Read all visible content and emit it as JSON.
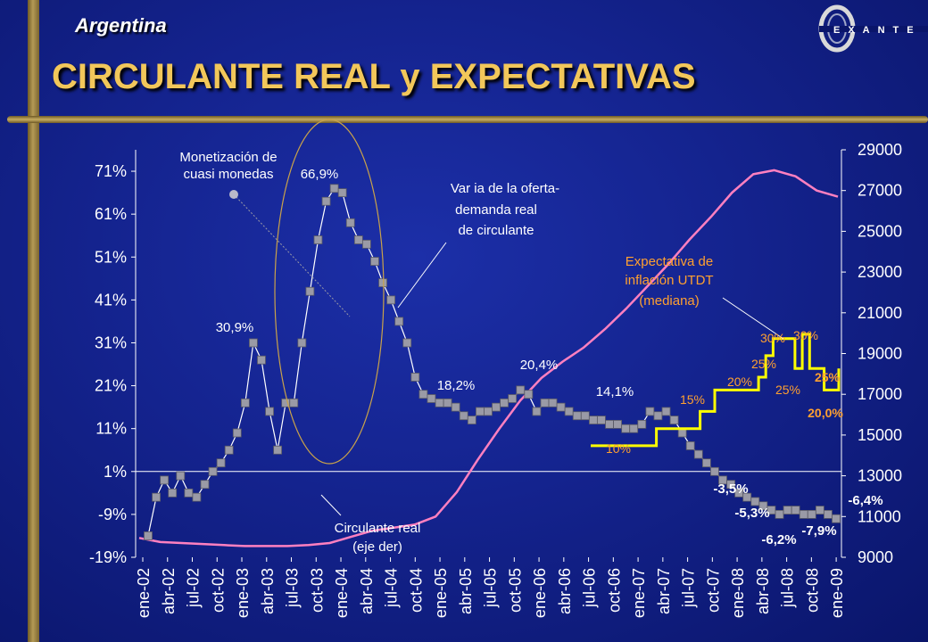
{
  "header": {
    "country": "Argentina",
    "title": "CIRCULANTE REAL y EXPECTATIVAS",
    "logo_text": "EXANTE"
  },
  "colors": {
    "background": "#14238e",
    "title": "#f2c75a",
    "bars": "#b49a55",
    "pct_series": "#9a9aa6",
    "real_series": "#ff80c0",
    "expect_series": "#ffff00",
    "expect_label": "#ffa030"
  },
  "chart_data": {
    "type": "line",
    "x_tick_labels": [
      "ene-02",
      "abr-02",
      "jul-02",
      "oct-02",
      "ene-03",
      "abr-03",
      "jul-03",
      "oct-03",
      "ene-04",
      "abr-04",
      "jul-04",
      "oct-04",
      "ene-05",
      "abr-05",
      "jul-05",
      "oct-05",
      "ene-06",
      "abr-06",
      "jul-06",
      "oct-06",
      "ene-07",
      "abr-07",
      "jul-07",
      "oct-07",
      "ene-08",
      "abr-08",
      "jul-08",
      "oct-08",
      "ene-09"
    ],
    "y_left": {
      "ticks": [
        "71%",
        "61%",
        "51%",
        "41%",
        "31%",
        "21%",
        "11%",
        "1%",
        "-9%",
        "-19%"
      ],
      "range": [
        -19,
        76
      ]
    },
    "y_right": {
      "ticks": [
        "29000",
        "27000",
        "25000",
        "23000",
        "21000",
        "19000",
        "17000",
        "15000",
        "13000",
        "11000",
        "9000"
      ],
      "range": [
        9000,
        29000
      ]
    },
    "series": [
      {
        "name": "Var ia de la oferta-demanda real de circulante",
        "axis": "left",
        "values": [
          -14,
          -5,
          -1,
          -4,
          0,
          -4,
          -5,
          -2,
          1,
          3,
          6,
          10,
          17,
          31,
          27,
          15,
          6,
          17,
          17,
          31,
          43,
          55,
          64,
          67,
          66,
          59,
          55,
          54,
          50,
          45,
          41,
          36,
          31,
          23,
          19,
          18,
          17,
          17,
          16,
          14,
          13,
          15,
          15,
          16,
          17,
          18,
          20,
          19,
          15,
          17,
          17,
          16,
          15,
          14,
          14,
          13,
          13,
          12,
          12,
          11,
          11,
          12,
          15,
          14,
          15,
          13,
          10,
          7,
          5,
          3,
          1,
          -1,
          -2,
          -4,
          -5,
          -6,
          -7,
          -8,
          -9,
          -8,
          -8,
          -9,
          -9,
          -8,
          -9,
          -10
        ]
      },
      {
        "name": "Circulante real (eje der)",
        "axis": "right",
        "values": [
          9950,
          9750,
          9700,
          9650,
          9600,
          9550,
          9550,
          9550,
          9600,
          9700,
          10000,
          10300,
          10450,
          10600,
          11000,
          12200,
          13800,
          15300,
          16700,
          17800,
          18600,
          19300,
          20200,
          21200,
          22300,
          23400,
          24600,
          25700,
          26900,
          27800,
          28000,
          27700,
          27000,
          26700
        ]
      },
      {
        "name": "Expectativa de inflación UTDT (mediana)",
        "axis": "left",
        "values": [
          7,
          7,
          7,
          7,
          7,
          7,
          7,
          7,
          7,
          11,
          11,
          11,
          11,
          11,
          11,
          15,
          15,
          20,
          20,
          20,
          20,
          20,
          20,
          23,
          28,
          32,
          32,
          32,
          25,
          33,
          25,
          25,
          20,
          20,
          25
        ]
      }
    ],
    "annotations": {
      "peak_1": "30,9%",
      "peak_2": "66,9%",
      "mid_1": "18,2%",
      "mid_2": "20,4%",
      "mid_3": "14,1%",
      "neg_1": "-3,5%",
      "neg_2": "-5,3%",
      "neg_3": "-6,2%",
      "neg_4": "-7,9%",
      "neg_5": "-6,4%",
      "exp_10": "10%",
      "exp_15": "15%",
      "exp_20a": "20%",
      "exp_25a": "25%",
      "exp_30a": "30%",
      "exp_30b": "30%",
      "exp_25b": "25%",
      "exp_25c": "25%",
      "exp_20b": "20,0%",
      "monet_line1": "Monetización de",
      "monet_line2": "cuasi monedas",
      "var_line1": "Var ia de la oferta-",
      "var_line2": "demanda real",
      "var_line3": "de circulante",
      "exp_title1": "Expectativa de",
      "exp_title2": "inflación UTDT",
      "exp_title3": "(mediana)",
      "circ_line1": "Circulante real",
      "circ_line2": "(eje der)"
    },
    "grid": false,
    "legend": "none"
  }
}
